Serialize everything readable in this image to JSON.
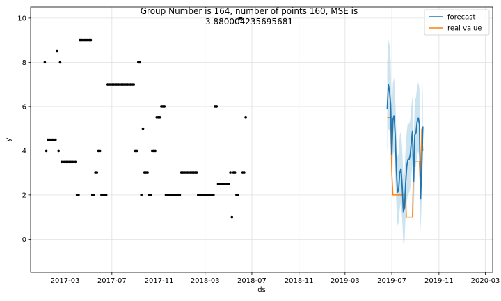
{
  "chart_data": {
    "type": "line",
    "title": "Group Number is 164, number of points 160, MSE is 3.880004235695681",
    "title_lines": [
      "Group Number is 164, number of points 160, MSE is",
      "3.880004235695681"
    ],
    "xlabel": "ds",
    "ylabel": "y",
    "xlim": [
      "2016-12-01",
      "2020-03-20"
    ],
    "ylim": [
      -1.5,
      10.5
    ],
    "grid": true,
    "legend_position": "top-right",
    "x_ticks": [
      {
        "date": "2017-03-01",
        "label": "2017-03"
      },
      {
        "date": "2017-07-01",
        "label": "2017-07"
      },
      {
        "date": "2017-11-01",
        "label": "2017-11"
      },
      {
        "date": "2018-03-01",
        "label": "2018-03"
      },
      {
        "date": "2018-07-01",
        "label": "2018-07"
      },
      {
        "date": "2018-11-01",
        "label": "2018-11"
      },
      {
        "date": "2019-03-01",
        "label": "2019-03"
      },
      {
        "date": "2019-07-01",
        "label": "2019-07"
      },
      {
        "date": "2019-11-01",
        "label": "2019-11"
      },
      {
        "date": "2020-03-01",
        "label": "2020-03"
      }
    ],
    "y_ticks": [
      0,
      2,
      4,
      6,
      8,
      10
    ],
    "colors": {
      "history": "#000000",
      "forecast": "#1f77b4",
      "band": "#8ec1dd",
      "real": "#ff7f0e"
    },
    "series": [
      {
        "name": "",
        "kind": "history",
        "points": [
          [
            "2017-01-07",
            8
          ],
          [
            "2017-01-11",
            4
          ],
          [
            "2017-01-15",
            4.5
          ],
          [
            "2017-01-19",
            4.5
          ],
          [
            "2017-01-23",
            4.5
          ],
          [
            "2017-01-27",
            4.5
          ],
          [
            "2017-01-31",
            4.5
          ],
          [
            "2017-02-04",
            4.5
          ],
          [
            "2017-02-08",
            8.5
          ],
          [
            "2017-02-12",
            4
          ],
          [
            "2017-02-16",
            8
          ],
          [
            "2017-02-20",
            3.5
          ],
          [
            "2017-02-24",
            3.5
          ],
          [
            "2017-02-28",
            3.5
          ],
          [
            "2017-03-04",
            3.5
          ],
          [
            "2017-03-08",
            3.5
          ],
          [
            "2017-03-12",
            3.5
          ],
          [
            "2017-03-16",
            3.5
          ],
          [
            "2017-03-20",
            3.5
          ],
          [
            "2017-03-24",
            3.5
          ],
          [
            "2017-03-28",
            3.5
          ],
          [
            "2017-04-01",
            2
          ],
          [
            "2017-04-05",
            2
          ],
          [
            "2017-04-09",
            9
          ],
          [
            "2017-04-13",
            9
          ],
          [
            "2017-04-17",
            9
          ],
          [
            "2017-04-21",
            9
          ],
          [
            "2017-04-25",
            9
          ],
          [
            "2017-04-29",
            9
          ],
          [
            "2017-05-03",
            9
          ],
          [
            "2017-05-07",
            9
          ],
          [
            "2017-05-11",
            2
          ],
          [
            "2017-05-15",
            2
          ],
          [
            "2017-05-19",
            3
          ],
          [
            "2017-05-23",
            3
          ],
          [
            "2017-05-27",
            4
          ],
          [
            "2017-05-31",
            4
          ],
          [
            "2017-06-04",
            2
          ],
          [
            "2017-06-08",
            2
          ],
          [
            "2017-06-12",
            2
          ],
          [
            "2017-06-16",
            2
          ],
          [
            "2017-06-20",
            7
          ],
          [
            "2017-06-24",
            7
          ],
          [
            "2017-06-28",
            7
          ],
          [
            "2017-07-02",
            7
          ],
          [
            "2017-07-06",
            7
          ],
          [
            "2017-07-10",
            7
          ],
          [
            "2017-07-14",
            7
          ],
          [
            "2017-07-18",
            7
          ],
          [
            "2017-07-22",
            7
          ],
          [
            "2017-07-26",
            7
          ],
          [
            "2017-07-30",
            7
          ],
          [
            "2017-08-03",
            7
          ],
          [
            "2017-08-07",
            7
          ],
          [
            "2017-08-11",
            7
          ],
          [
            "2017-08-15",
            7
          ],
          [
            "2017-08-19",
            7
          ],
          [
            "2017-08-23",
            7
          ],
          [
            "2017-08-27",
            7
          ],
          [
            "2017-08-31",
            4
          ],
          [
            "2017-09-04",
            4
          ],
          [
            "2017-09-08",
            8
          ],
          [
            "2017-09-12",
            8
          ],
          [
            "2017-09-16",
            2
          ],
          [
            "2017-09-20",
            5
          ],
          [
            "2017-09-24",
            3
          ],
          [
            "2017-09-28",
            3
          ],
          [
            "2017-10-02",
            3
          ],
          [
            "2017-10-06",
            2
          ],
          [
            "2017-10-10",
            2
          ],
          [
            "2017-10-14",
            4
          ],
          [
            "2017-10-18",
            4
          ],
          [
            "2017-10-22",
            4
          ],
          [
            "2017-10-26",
            5.5
          ],
          [
            "2017-10-30",
            5.5
          ],
          [
            "2017-11-03",
            5.5
          ],
          [
            "2017-11-07",
            6
          ],
          [
            "2017-11-11",
            6
          ],
          [
            "2017-11-15",
            6
          ],
          [
            "2017-11-19",
            2
          ],
          [
            "2017-11-23",
            2
          ],
          [
            "2017-11-27",
            2
          ],
          [
            "2017-12-01",
            2
          ],
          [
            "2017-12-05",
            2
          ],
          [
            "2017-12-09",
            2
          ],
          [
            "2017-12-13",
            2
          ],
          [
            "2017-12-17",
            2
          ],
          [
            "2017-12-21",
            2
          ],
          [
            "2017-12-25",
            2
          ],
          [
            "2017-12-29",
            3
          ],
          [
            "2018-01-02",
            3
          ],
          [
            "2018-01-06",
            3
          ],
          [
            "2018-01-10",
            3
          ],
          [
            "2018-01-14",
            3
          ],
          [
            "2018-01-18",
            3
          ],
          [
            "2018-01-22",
            3
          ],
          [
            "2018-01-26",
            3
          ],
          [
            "2018-01-30",
            3
          ],
          [
            "2018-02-03",
            3
          ],
          [
            "2018-02-07",
            3
          ],
          [
            "2018-02-11",
            2
          ],
          [
            "2018-02-15",
            2
          ],
          [
            "2018-02-19",
            2
          ],
          [
            "2018-02-23",
            2
          ],
          [
            "2018-02-27",
            2
          ],
          [
            "2018-03-03",
            2
          ],
          [
            "2018-03-07",
            2
          ],
          [
            "2018-03-11",
            2
          ],
          [
            "2018-03-15",
            2
          ],
          [
            "2018-03-19",
            2
          ],
          [
            "2018-03-23",
            2
          ],
          [
            "2018-03-27",
            6
          ],
          [
            "2018-03-31",
            6
          ],
          [
            "2018-04-04",
            2.5
          ],
          [
            "2018-04-08",
            2.5
          ],
          [
            "2018-04-12",
            2.5
          ],
          [
            "2018-04-16",
            2.5
          ],
          [
            "2018-04-20",
            2.5
          ],
          [
            "2018-04-24",
            2.5
          ],
          [
            "2018-04-28",
            2.5
          ],
          [
            "2018-05-02",
            2.5
          ],
          [
            "2018-05-06",
            3
          ],
          [
            "2018-05-10",
            1
          ],
          [
            "2018-05-14",
            3
          ],
          [
            "2018-05-18",
            3
          ],
          [
            "2018-05-22",
            2
          ],
          [
            "2018-05-26",
            2
          ],
          [
            "2018-05-30",
            10
          ],
          [
            "2018-06-03",
            10
          ],
          [
            "2018-06-07",
            3
          ],
          [
            "2018-06-11",
            3
          ],
          [
            "2018-06-15",
            5.5
          ]
        ]
      },
      {
        "name": "forecast",
        "kind": "forecast",
        "points": [
          [
            "2019-06-19",
            5.9
          ],
          [
            "2019-06-22",
            7
          ],
          [
            "2019-06-25",
            6.7
          ],
          [
            "2019-06-28",
            6.1
          ],
          [
            "2019-07-01",
            3.8
          ],
          [
            "2019-07-04",
            5.4
          ],
          [
            "2019-07-07",
            5.6
          ],
          [
            "2019-07-10",
            4.7
          ],
          [
            "2019-07-13",
            3.1
          ],
          [
            "2019-07-16",
            2.1
          ],
          [
            "2019-07-19",
            2.3
          ],
          [
            "2019-07-22",
            3
          ],
          [
            "2019-07-25",
            3.2
          ],
          [
            "2019-07-28",
            2.4
          ],
          [
            "2019-07-31",
            1.3
          ],
          [
            "2019-08-03",
            1.4
          ],
          [
            "2019-08-06",
            2.5
          ],
          [
            "2019-08-09",
            3.3
          ],
          [
            "2019-08-12",
            3.6
          ],
          [
            "2019-08-15",
            3.6
          ],
          [
            "2019-08-18",
            3.8
          ],
          [
            "2019-08-21",
            4.4
          ],
          [
            "2019-08-24",
            4.9
          ],
          [
            "2019-08-27",
            2.6
          ],
          [
            "2019-08-30",
            4.7
          ],
          [
            "2019-09-02",
            4.8
          ],
          [
            "2019-09-05",
            5.3
          ],
          [
            "2019-09-08",
            5.5
          ],
          [
            "2019-09-11",
            5.2
          ],
          [
            "2019-09-14",
            1.8
          ],
          [
            "2019-09-17",
            3.3
          ],
          [
            "2019-09-20",
            5.1
          ]
        ]
      },
      {
        "name": "",
        "kind": "band",
        "lower": [
          3.9,
          5.0,
          4.9,
          4.2,
          2.3,
          3.8,
          4.0,
          3.0,
          1.5,
          0.6,
          0.8,
          1.4,
          1.7,
          0.9,
          -0.2,
          -0.1,
          1.0,
          1.7,
          2.0,
          2.1,
          2.3,
          2.9,
          3.4,
          1.0,
          3.2,
          3.3,
          3.8,
          4.0,
          3.7,
          0.3,
          1.8,
          3.5
        ],
        "upper": [
          7.9,
          9.0,
          8.8,
          8.1,
          5.4,
          7.1,
          7.3,
          6.4,
          4.7,
          3.7,
          3.9,
          4.7,
          4.9,
          4.1,
          2.9,
          3.0,
          4.1,
          4.9,
          5.3,
          5.2,
          5.4,
          6.0,
          6.5,
          4.2,
          6.3,
          6.4,
          6.9,
          7.1,
          6.8,
          3.4,
          4.9,
          7.2
        ]
      },
      {
        "name": "real value",
        "kind": "real",
        "points": [
          [
            "2019-06-19",
            5.5
          ],
          [
            "2019-06-28",
            5.5
          ],
          [
            "2019-07-01",
            3
          ],
          [
            "2019-07-04",
            2
          ],
          [
            "2019-07-22",
            2
          ],
          [
            "2019-08-06",
            2
          ],
          [
            "2019-08-08",
            1
          ],
          [
            "2019-08-24",
            1
          ],
          [
            "2019-08-27",
            3.5
          ],
          [
            "2019-09-11",
            3.5
          ],
          [
            "2019-09-14",
            2
          ],
          [
            "2019-09-17",
            5
          ],
          [
            "2019-09-20",
            4
          ]
        ]
      }
    ]
  }
}
